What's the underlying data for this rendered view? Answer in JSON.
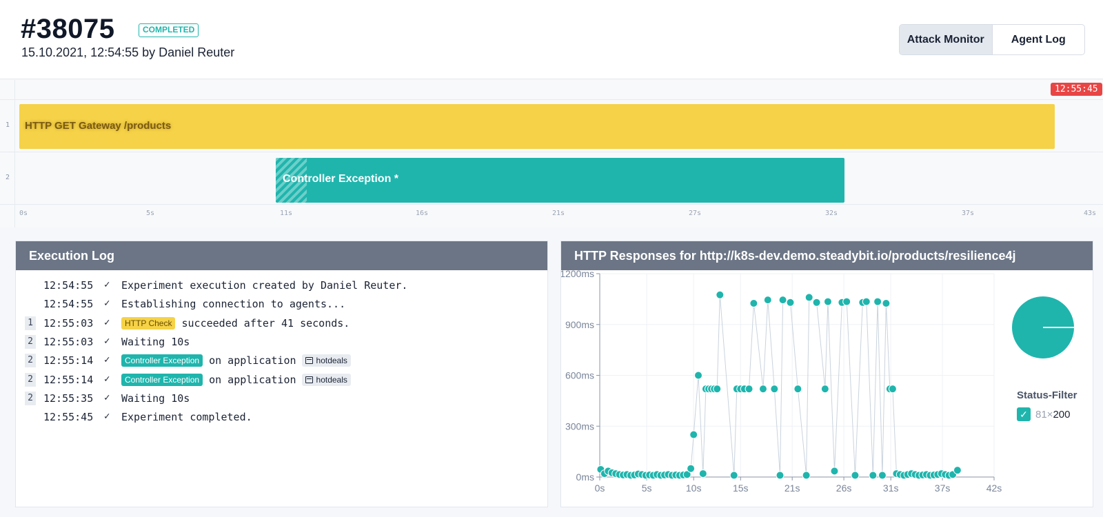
{
  "header": {
    "run_id": "#38075",
    "status": "COMPLETED",
    "subtitle": "15.10.2021, 12:54:55 by Daniel Reuter",
    "tabs": [
      {
        "label": "Attack Monitor",
        "active": true
      },
      {
        "label": "Agent Log",
        "active": false
      }
    ]
  },
  "timeline": {
    "end_time": "12:55:45",
    "rows": [
      {
        "number": "1",
        "label": "HTTP GET Gateway /products",
        "color": "#f5d247"
      },
      {
        "number": "2",
        "label": "Controller Exception *",
        "color": "#1fb5ad"
      }
    ],
    "ticks": [
      "0s",
      "5s",
      "11s",
      "16s",
      "21s",
      "27s",
      "32s",
      "37s",
      "43s"
    ]
  },
  "execution_log": {
    "title": "Execution Log",
    "entries": [
      {
        "step": "",
        "time": "12:54:55",
        "text": "Experiment execution created by Daniel Reuter."
      },
      {
        "step": "",
        "time": "12:54:55",
        "text": "Establishing connection to agents..."
      },
      {
        "step": "1",
        "time": "12:55:03",
        "chip": "HTTP Check",
        "text": "succeeded after 41 seconds."
      },
      {
        "step": "2",
        "time": "12:55:03",
        "text": "Waiting 10s"
      },
      {
        "step": "2",
        "time": "12:55:14",
        "chip": "Controller Exception",
        "text": "on application",
        "tag": "hotdeals"
      },
      {
        "step": "2",
        "time": "12:55:14",
        "chip": "Controller Exception",
        "text": "on application",
        "tag": "hotdeals"
      },
      {
        "step": "2",
        "time": "12:55:35",
        "text": "Waiting 10s"
      },
      {
        "step": "",
        "time": "12:55:45",
        "text": "Experiment completed."
      }
    ]
  },
  "http_panel": {
    "title": "HTTP Responses for http://k8s-dev.demo.steadybit.io/products/resilience4j",
    "status_filter": {
      "title": "Status-Filter",
      "count": "81×",
      "code": "200",
      "checked": true
    }
  },
  "chart_data": {
    "type": "scatter",
    "title": "",
    "xlabel": "",
    "ylabel": "",
    "xlim": [
      0,
      42
    ],
    "ylim": [
      0,
      1200
    ],
    "x_ticks": [
      "0s",
      "5s",
      "10s",
      "15s",
      "21s",
      "26s",
      "31s",
      "37s",
      "42s"
    ],
    "y_ticks": [
      "0ms",
      "300ms",
      "600ms",
      "900ms",
      "1200ms"
    ],
    "series": [
      {
        "color": "#1fb5ad",
        "x": [
          0.1,
          0.5,
          0.9,
          1.3,
          1.7,
          2.1,
          2.5,
          2.9,
          3.3,
          3.7,
          4.1,
          4.5,
          4.9,
          5.3,
          5.7,
          6.1,
          6.5,
          6.9,
          7.3,
          7.7,
          8.1,
          8.5,
          8.9,
          9.3,
          9.7,
          10.0,
          10.5,
          11.0,
          11.3,
          11.6,
          11.9,
          12.2,
          12.5,
          12.8,
          14.3,
          14.6,
          15.0,
          15.4,
          15.9,
          16.4,
          17.4,
          17.9,
          18.6,
          19.2,
          19.5,
          20.3,
          21.1,
          22.0,
          22.3,
          23.1,
          24.0,
          24.3,
          25.0,
          25.8,
          26.3,
          27.2,
          28.0,
          28.4,
          29.1,
          29.6,
          30.1,
          30.5,
          30.9,
          31.2,
          31.6,
          32.0,
          32.4,
          32.8,
          33.2,
          33.6,
          34.0,
          34.4,
          34.8,
          35.2,
          35.6,
          36.0,
          36.4,
          36.8,
          37.2,
          37.6,
          38.1
        ],
        "y": [
          45,
          20,
          35,
          25,
          20,
          15,
          12,
          15,
          10,
          12,
          18,
          15,
          10,
          12,
          10,
          15,
          10,
          12,
          15,
          10,
          12,
          10,
          12,
          15,
          50,
          250,
          600,
          20,
          520,
          520,
          520,
          520,
          520,
          1075,
          10,
          520,
          520,
          520,
          520,
          1025,
          520,
          1045,
          520,
          10,
          1045,
          1030,
          520,
          10,
          1060,
          1030,
          520,
          1035,
          35,
          1030,
          1035,
          10,
          1030,
          1035,
          10,
          1035,
          10,
          1025,
          520,
          520,
          20,
          15,
          10,
          15,
          20,
          15,
          10,
          12,
          15,
          10,
          12,
          15,
          20,
          15,
          10,
          15,
          40
        ]
      }
    ]
  }
}
